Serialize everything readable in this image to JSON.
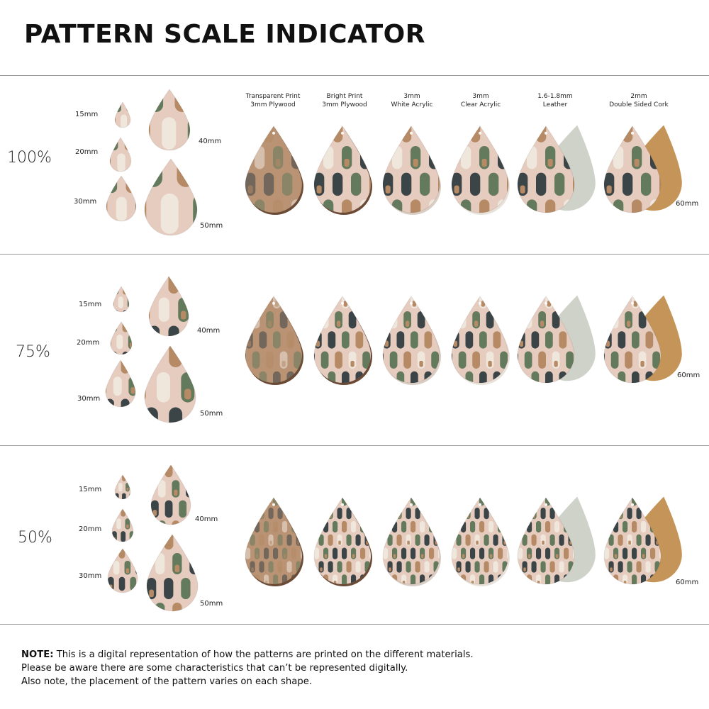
{
  "title": "PATTERN SCALE INDICATOR",
  "materials": [
    {
      "line1": "Transparent Print",
      "line2": "3mm Plywood"
    },
    {
      "line1": "Bright Print",
      "line2": "3mm Plywood"
    },
    {
      "line1": "3mm",
      "line2": "White Acrylic"
    },
    {
      "line1": "3mm",
      "line2": "Clear Acrylic"
    },
    {
      "line1": "1.6-1.8mm",
      "line2": "Leather"
    },
    {
      "line1": "2mm",
      "line2": "Double Sided Cork"
    }
  ],
  "sections": [
    {
      "scale": "100%",
      "sizes": {
        "s15": "15mm",
        "s20": "20mm",
        "s30": "30mm",
        "s40": "40mm",
        "s50": "50mm"
      },
      "material_size": "60mm"
    },
    {
      "scale": "75%",
      "sizes": {
        "s15": "15mm",
        "s20": "20mm",
        "s30": "30mm",
        "s40": "40mm",
        "s50": "50mm"
      },
      "material_size": "60mm"
    },
    {
      "scale": "50%",
      "sizes": {
        "s15": "15mm",
        "s20": "20mm",
        "s30": "30mm",
        "s40": "40mm",
        "s50": "50mm"
      },
      "material_size": "60mm"
    }
  ],
  "note": {
    "label": "NOTE:",
    "line1": "This is a digital representation of how the patterns are printed on the different materials.",
    "line2": "Please be aware there are some characteristics that can’t be represented digitally.",
    "line3": "Also note, the placement of the pattern varies on each shape."
  },
  "colors": {
    "blush": "#e6cbbf",
    "sage": "#647a5c",
    "charcoal": "#3b4447",
    "tan": "#b58a64",
    "cream": "#efe6dc",
    "plywood": "#b99373",
    "plywood_edge": "#6b4a36",
    "leather_back": "#cfd2c9",
    "cork": "#c59458"
  }
}
